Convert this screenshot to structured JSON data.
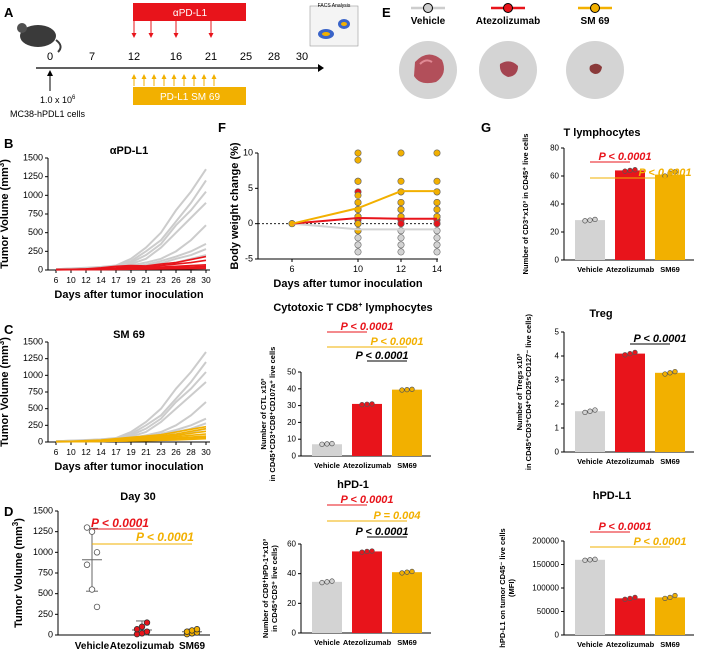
{
  "colors": {
    "red": "#e8141b",
    "gold": "#f2b000",
    "grey": "#cdcdcd",
    "black": "#000000"
  },
  "panel_a": {
    "letter": "A",
    "days": [
      "0",
      "7",
      "12",
      "16",
      "21",
      "25",
      "28",
      "30"
    ],
    "apdl1_label": "αPD-L1",
    "sm69_label": "PD-L1 SM 69",
    "facs_label": "FACS Analysis",
    "cells_dose": "1.0 x 10",
    "cells_exp": "6",
    "cells_line": "MC38-hPDL1 cells"
  },
  "panel_e": {
    "letter": "E",
    "legend": [
      "Vehicle",
      "Atezolizumab",
      "SM 69"
    ]
  },
  "chart_data": [
    {
      "id": "B",
      "type": "line",
      "title": "αPD-L1",
      "xlabel": "Days after tumor inoculation",
      "ylabel": "Tumor Volume (mm",
      "ylabel_sup": "3",
      "ylabel_end": ")",
      "x": [
        6,
        10,
        12,
        14,
        17,
        19,
        21,
        23,
        26,
        28,
        30
      ],
      "xticks": [
        "6",
        "10",
        "12",
        "14",
        "17",
        "19",
        "21",
        "23",
        "26",
        "28",
        "30"
      ],
      "yticks": [
        0,
        250,
        500,
        750,
        1000,
        1250,
        1500
      ],
      "ylim": [
        0,
        1500
      ],
      "grey_series": [
        [
          10,
          20,
          30,
          40,
          60,
          150,
          300,
          500,
          800,
          1050,
          1350
        ],
        [
          10,
          15,
          25,
          35,
          50,
          120,
          250,
          400,
          650,
          900,
          1200
        ],
        [
          10,
          20,
          25,
          40,
          55,
          100,
          200,
          350,
          600,
          800,
          1050
        ],
        [
          8,
          12,
          20,
          30,
          45,
          80,
          150,
          300,
          500,
          700,
          900
        ],
        [
          8,
          10,
          15,
          25,
          35,
          60,
          100,
          150,
          250,
          400,
          600
        ],
        [
          5,
          10,
          12,
          20,
          30,
          40,
          70,
          120,
          180,
          250,
          350
        ],
        [
          5,
          8,
          10,
          15,
          25,
          35,
          60,
          90,
          150,
          200,
          280
        ],
        [
          5,
          8,
          10,
          12,
          20,
          30,
          45,
          70,
          100,
          150,
          200
        ]
      ],
      "red_series": [
        [
          5,
          10,
          15,
          30,
          50,
          60,
          55,
          80,
          100,
          140,
          180
        ],
        [
          5,
          8,
          12,
          20,
          30,
          45,
          40,
          60,
          80,
          100,
          130
        ],
        [
          5,
          6,
          10,
          15,
          20,
          30,
          35,
          40,
          50,
          60,
          70
        ],
        [
          5,
          5,
          8,
          10,
          15,
          20,
          25,
          30,
          35,
          40,
          50
        ],
        [
          4,
          5,
          6,
          8,
          10,
          12,
          15,
          18,
          20,
          25,
          30
        ],
        [
          3,
          4,
          5,
          6,
          8,
          10,
          12,
          14,
          16,
          18,
          20
        ]
      ]
    },
    {
      "id": "C",
      "type": "line",
      "title": "SM 69",
      "xlabel": "Days after tumor inoculation",
      "ylabel": "Tumor Volume (mm",
      "ylabel_sup": "3",
      "ylabel_end": ")",
      "x": [
        6,
        10,
        12,
        14,
        17,
        19,
        21,
        23,
        26,
        28,
        30
      ],
      "xticks": [
        "6",
        "10",
        "12",
        "14",
        "17",
        "19",
        "21",
        "23",
        "26",
        "28",
        "30"
      ],
      "yticks": [
        0,
        250,
        500,
        750,
        1000,
        1250,
        1500
      ],
      "ylim": [
        0,
        1500
      ],
      "grey_series": [
        [
          10,
          20,
          30,
          40,
          60,
          150,
          300,
          500,
          800,
          1050,
          1350
        ],
        [
          10,
          15,
          25,
          35,
          50,
          120,
          250,
          400,
          650,
          900,
          1200
        ],
        [
          10,
          20,
          25,
          40,
          55,
          100,
          200,
          350,
          600,
          800,
          1050
        ],
        [
          8,
          12,
          20,
          30,
          45,
          80,
          150,
          300,
          500,
          700,
          900
        ],
        [
          8,
          10,
          15,
          25,
          35,
          60,
          100,
          150,
          250,
          400,
          600
        ],
        [
          5,
          10,
          12,
          20,
          30,
          40,
          70,
          120,
          180,
          250,
          350
        ],
        [
          5,
          8,
          10,
          15,
          25,
          35,
          60,
          90,
          150,
          200,
          280
        ],
        [
          5,
          8,
          10,
          12,
          20,
          30,
          45,
          70,
          100,
          150,
          200
        ]
      ],
      "gold_series": [
        [
          5,
          10,
          20,
          30,
          50,
          70,
          90,
          110,
          150,
          190,
          230
        ],
        [
          5,
          10,
          15,
          25,
          40,
          55,
          70,
          90,
          120,
          160,
          200
        ],
        [
          5,
          8,
          12,
          20,
          30,
          45,
          60,
          80,
          100,
          130,
          160
        ],
        [
          5,
          8,
          10,
          15,
          25,
          35,
          50,
          65,
          80,
          100,
          120
        ],
        [
          4,
          6,
          8,
          12,
          20,
          30,
          40,
          50,
          60,
          75,
          90
        ],
        [
          4,
          5,
          7,
          10,
          15,
          20,
          30,
          40,
          50,
          60,
          70
        ],
        [
          3,
          4,
          6,
          8,
          12,
          15,
          20,
          25,
          30,
          40,
          50
        ]
      ]
    },
    {
      "id": "D",
      "type": "scatter",
      "title": "Day 30",
      "categories": [
        "Vehicle",
        "Atezolizumab",
        "SM69"
      ],
      "ylabel": "Tumor Volume (mm",
      "ylabel_sup": "3",
      "ylabel_end": ")",
      "yticks": [
        0,
        250,
        500,
        750,
        1000,
        1250,
        1500
      ],
      "ylim": [
        0,
        1500
      ],
      "means": [
        910,
        60,
        40
      ],
      "sd": [
        380,
        110,
        30
      ],
      "points": [
        [
          1300,
          1250,
          1000,
          850,
          550,
          340
        ],
        [
          10,
          20,
          40,
          70,
          100,
          150
        ],
        [
          10,
          20,
          30,
          40,
          55,
          70
        ]
      ],
      "p_values": [
        "P < 0.0001",
        "P < 0.0001"
      ]
    },
    {
      "id": "F_weight",
      "type": "line",
      "title": "",
      "xlabel": "Days after tumor inoculation",
      "ylabel": "Body weight change (%)",
      "x": [
        6,
        10,
        12,
        14
      ],
      "xticks": [
        "6",
        "10",
        "12",
        "14"
      ],
      "yticks": [
        -5,
        0,
        5,
        10
      ],
      "ylim": [
        -5,
        10
      ],
      "gold_mean": [
        0,
        2.2,
        4.6,
        4.6
      ],
      "red_mean": [
        0,
        0.8,
        0.7,
        0.7
      ],
      "grey_mean": [
        0,
        -0.8,
        -0.8,
        -0.8
      ],
      "gold_points": [
        [
          0
        ],
        [
          10,
          9,
          6,
          4,
          3,
          2,
          1,
          0,
          -1
        ],
        [
          10,
          6,
          4.5,
          3,
          2,
          1
        ],
        [
          10,
          6,
          4.5,
          3,
          2,
          1
        ]
      ],
      "red_points": [
        [
          0
        ],
        [
          6,
          4.5,
          3,
          2,
          1,
          0.5,
          0,
          -1
        ],
        [
          4.5,
          3,
          2,
          1,
          0.5,
          0
        ],
        [
          4.5,
          3,
          2,
          1,
          0.5,
          0
        ]
      ],
      "grey_points": [
        [
          0
        ],
        [
          2,
          1,
          0,
          -1,
          -2,
          -3,
          -4
        ],
        [
          2,
          1,
          0,
          -1,
          -2,
          -3,
          -4
        ],
        [
          1,
          0,
          -1,
          -2,
          -3,
          -4
        ]
      ]
    },
    {
      "id": "F_ctl",
      "type": "bar",
      "title": "Cytotoxic T CD8",
      "title_sup": "+",
      "title_end": " lymphocytes",
      "categories": [
        "Vehicle",
        "Atezolizumab",
        "SM69"
      ],
      "values": [
        7,
        31,
        39.5
      ],
      "points": [
        [
          7,
          7.2,
          7.4
        ],
        [
          30.6,
          30.8,
          31
        ],
        [
          39.3,
          39.5,
          39.7
        ]
      ],
      "ylabel_lines": [
        "Number of  CTL x10³",
        "in CD45⁺CD3⁺CD8⁺CD107a⁺ live cells"
      ],
      "yticks": [
        0,
        10,
        20,
        30,
        40,
        50
      ],
      "ylim": [
        0,
        50
      ],
      "p_values": [
        "P < 0.0001",
        "P < 0.0001",
        "P < 0.0001"
      ]
    },
    {
      "id": "F_hpd1",
      "type": "bar",
      "title": "hPD-1",
      "categories": [
        "Vehicle",
        "Atezolizumab",
        "SM69"
      ],
      "values": [
        34.5,
        55,
        41
      ],
      "points": [
        [
          34,
          34.5,
          35
        ],
        [
          54.5,
          55,
          55.3
        ],
        [
          40.5,
          41,
          41.5
        ]
      ],
      "ylabel_lines": [
        "Number of CD8⁺hPD-1⁺x10³",
        "in CD45⁺CD3⁺ live cells)"
      ],
      "yticks": [
        0,
        20,
        40,
        60
      ],
      "ylim": [
        0,
        60
      ],
      "p_values": [
        "P < 0.0001",
        "P = 0.004",
        "P < 0.0001"
      ]
    },
    {
      "id": "G_tcell",
      "type": "bar",
      "title": "T lymphocytes",
      "categories": [
        "Vehicle",
        "Atezolizumab",
        "SM69"
      ],
      "values": [
        28.5,
        64,
        61
      ],
      "points": [
        [
          28,
          28.5,
          29
        ],
        [
          63.5,
          64,
          64.5
        ],
        [
          60,
          62,
          63
        ]
      ],
      "ylabel_lines": [
        "Number of CD3⁺x10³ in CD45⁺ live cells"
      ],
      "yticks": [
        0,
        20,
        40,
        60,
        80
      ],
      "ylim": [
        0,
        80
      ],
      "p_values": [
        "P < 0.0001",
        "P < 0.0001"
      ]
    },
    {
      "id": "G_treg",
      "type": "bar",
      "title": "Treg",
      "categories": [
        "Vehicle",
        "Atezolizumab",
        "SM69"
      ],
      "values": [
        1.7,
        4.1,
        3.3
      ],
      "points": [
        [
          1.65,
          1.7,
          1.75
        ],
        [
          4.05,
          4.1,
          4.15
        ],
        [
          3.25,
          3.3,
          3.35
        ]
      ],
      "ylabel_lines": [
        "Number of  Tregs x10³",
        "in CD45⁺CD3⁺CD4⁺CD25⁺CD127⁻ live cells)"
      ],
      "yticks": [
        0,
        1,
        2,
        3,
        4,
        5
      ],
      "ylim": [
        0,
        5
      ],
      "p_values": [
        "P < 0.0001"
      ]
    },
    {
      "id": "G_hpdl1",
      "type": "bar",
      "title": "hPD-L1",
      "categories": [
        "Vehicle",
        "Atezolizumab",
        "SM69"
      ],
      "values": [
        160000,
        78000,
        80000
      ],
      "points": [
        [
          159000,
          160000,
          161000
        ],
        [
          76000,
          78000,
          80000
        ],
        [
          78000,
          80000,
          84000
        ]
      ],
      "ylabel_lines": [
        "hPD-L1 on tumor CD45⁻ live cells",
        "(MFI)"
      ],
      "yticks": [
        0,
        50000,
        100000,
        150000,
        200000
      ],
      "ylim": [
        0,
        200000
      ],
      "p_values": [
        "P < 0.0001",
        "P < 0.0001"
      ]
    }
  ]
}
